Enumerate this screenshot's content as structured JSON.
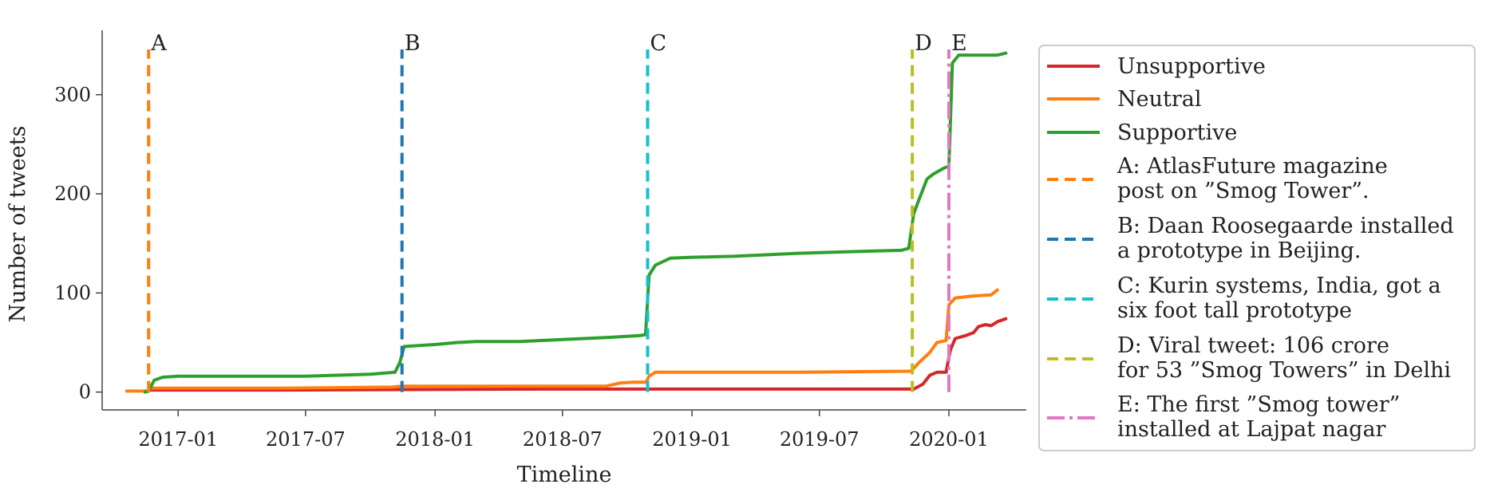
{
  "chart_data": {
    "type": "line",
    "xlabel": "Timeline",
    "ylabel": "Number of tweets",
    "xlim": [
      "2016-09-15",
      "2020-04-20"
    ],
    "ylim": [
      -18,
      365
    ],
    "x_ticks": [
      "2017-01",
      "2017-07",
      "2018-01",
      "2018-07",
      "2019-01",
      "2019-07",
      "2020-01"
    ],
    "y_ticks": [
      0,
      100,
      200,
      300
    ],
    "grid": false,
    "legend_position": "right",
    "series": [
      {
        "name": "Unsupportive",
        "color": "#d62728",
        "points": [
          [
            "2016-11-20",
            2
          ],
          [
            "2017-06-01",
            2
          ],
          [
            "2018-06-01",
            3
          ],
          [
            "2018-10-28",
            3
          ],
          [
            "2019-01-01",
            3
          ],
          [
            "2019-07-01",
            3
          ],
          [
            "2019-11-01",
            3
          ],
          [
            "2019-11-12",
            3
          ],
          [
            "2019-11-25",
            8
          ],
          [
            "2019-12-05",
            17
          ],
          [
            "2019-12-15",
            20
          ],
          [
            "2019-12-28",
            20
          ],
          [
            "2020-01-03",
            42
          ],
          [
            "2020-01-10",
            54
          ],
          [
            "2020-01-25",
            57
          ],
          [
            "2020-02-05",
            60
          ],
          [
            "2020-02-12",
            66
          ],
          [
            "2020-02-22",
            68
          ],
          [
            "2020-03-01",
            67
          ],
          [
            "2020-03-10",
            71
          ],
          [
            "2020-03-22",
            74
          ]
        ]
      },
      {
        "name": "Neutral",
        "color": "#ff7f0e",
        "points": [
          [
            "2016-10-20",
            1
          ],
          [
            "2016-11-20",
            1
          ],
          [
            "2016-11-21",
            4
          ],
          [
            "2017-06-01",
            4
          ],
          [
            "2017-11-01",
            5
          ],
          [
            "2017-11-15",
            6
          ],
          [
            "2018-06-01",
            6
          ],
          [
            "2018-09-01",
            6
          ],
          [
            "2018-09-20",
            9
          ],
          [
            "2018-10-10",
            10
          ],
          [
            "2018-10-28",
            10
          ],
          [
            "2018-11-01",
            16
          ],
          [
            "2018-11-10",
            20
          ],
          [
            "2019-06-01",
            20
          ],
          [
            "2019-11-08",
            21
          ],
          [
            "2019-11-20",
            30
          ],
          [
            "2019-12-05",
            40
          ],
          [
            "2019-12-15",
            50
          ],
          [
            "2019-12-28",
            52
          ],
          [
            "2020-01-01",
            88
          ],
          [
            "2020-01-10",
            95
          ],
          [
            "2020-02-05",
            97
          ],
          [
            "2020-03-01",
            98
          ],
          [
            "2020-03-10",
            103
          ]
        ]
      },
      {
        "name": "Supportive",
        "color": "#2ca02c",
        "points": [
          [
            "2016-11-15",
            0
          ],
          [
            "2016-11-20",
            1
          ],
          [
            "2016-11-28",
            12
          ],
          [
            "2016-12-10",
            15
          ],
          [
            "2017-01-01",
            16
          ],
          [
            "2017-07-01",
            16
          ],
          [
            "2017-10-01",
            18
          ],
          [
            "2017-11-05",
            20
          ],
          [
            "2017-11-12",
            30
          ],
          [
            "2017-11-18",
            46
          ],
          [
            "2018-01-01",
            48
          ],
          [
            "2018-02-01",
            50
          ],
          [
            "2018-03-01",
            51
          ],
          [
            "2018-05-01",
            51
          ],
          [
            "2018-07-01",
            53
          ],
          [
            "2018-09-01",
            55
          ],
          [
            "2018-10-20",
            57
          ],
          [
            "2018-10-27",
            58
          ],
          [
            "2018-11-01",
            118
          ],
          [
            "2018-11-10",
            128
          ],
          [
            "2018-12-01",
            135
          ],
          [
            "2019-01-01",
            136
          ],
          [
            "2019-03-01",
            137
          ],
          [
            "2019-06-01",
            140
          ],
          [
            "2019-09-01",
            142
          ],
          [
            "2019-10-25",
            143
          ],
          [
            "2019-11-05",
            145
          ],
          [
            "2019-11-12",
            180
          ],
          [
            "2019-11-20",
            195
          ],
          [
            "2019-12-01",
            215
          ],
          [
            "2019-12-10",
            220
          ],
          [
            "2019-12-25",
            226
          ],
          [
            "2020-01-01",
            228
          ],
          [
            "2020-01-06",
            332
          ],
          [
            "2020-01-15",
            340
          ],
          [
            "2020-03-10",
            340
          ],
          [
            "2020-03-22",
            342
          ]
        ]
      }
    ],
    "events": [
      {
        "letter": "A",
        "date": "2016-11-20",
        "color": "#ff7f0e",
        "style": "dashed",
        "legend": [
          "A: AtlasFuture magazine",
          "post on ”Smog Tower”."
        ]
      },
      {
        "letter": "B",
        "date": "2017-11-15",
        "color": "#1f77b4",
        "style": "dashed",
        "legend": [
          "B: Daan Roosegaarde installed",
          "a prototype in Beijing."
        ]
      },
      {
        "letter": "C",
        "date": "2018-10-30",
        "color": "#17becf",
        "style": "dashed",
        "legend": [
          "C: Kurin systems, India, got a",
          "six foot tall prototype"
        ]
      },
      {
        "letter": "D",
        "date": "2019-11-10",
        "color": "#bcbd22",
        "style": "dashed",
        "legend": [
          "D: Viral tweet: 106 crore",
          "for 53 ”Smog Towers” in Delhi"
        ]
      },
      {
        "letter": "E",
        "date": "2020-01-01",
        "color": "#e377c2",
        "style": "dashdot",
        "legend": [
          "E: The first ”Smog tower”",
          "installed at Lajpat nagar"
        ]
      }
    ]
  }
}
